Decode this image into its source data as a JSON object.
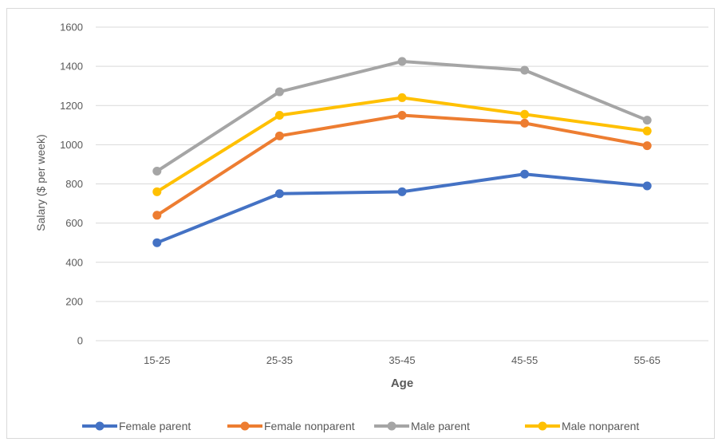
{
  "chart_data": {
    "type": "line",
    "title": "",
    "xlabel": "Age",
    "ylabel": "Salary ($ per week)",
    "categories": [
      "15-25",
      "25-35",
      "35-45",
      "45-55",
      "55-65"
    ],
    "ylim": [
      0,
      1600
    ],
    "yticks": [
      0,
      200,
      400,
      600,
      800,
      1000,
      1200,
      1400,
      1600
    ],
    "grid": true,
    "legend_position": "bottom",
    "series": [
      {
        "name": "Female parent",
        "color": "#4472c4",
        "values": [
          500,
          750,
          760,
          850,
          790
        ]
      },
      {
        "name": "Female nonparent",
        "color": "#ed7d31",
        "values": [
          640,
          1045,
          1150,
          1110,
          995
        ]
      },
      {
        "name": "Male parent",
        "color": "#a5a5a5",
        "values": [
          865,
          1270,
          1425,
          1380,
          1125
        ]
      },
      {
        "name": "Male nonparent",
        "color": "#ffc000",
        "values": [
          760,
          1150,
          1240,
          1155,
          1070
        ]
      }
    ]
  }
}
